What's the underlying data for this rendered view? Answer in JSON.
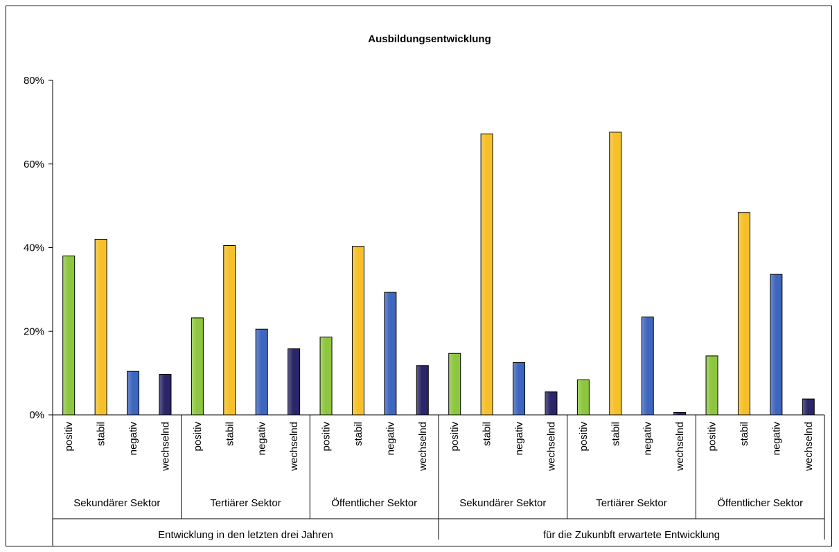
{
  "chart_data": {
    "type": "bar",
    "title": "Ausbildungsentwicklung",
    "ylim": [
      0,
      0.8
    ],
    "yticks": [
      "0%",
      "20%",
      "40%",
      "60%",
      "80%"
    ],
    "ytick_values": [
      0,
      0.2,
      0.4,
      0.6,
      0.8
    ],
    "grid": false,
    "legend": "none",
    "colors": {
      "positiv": "#8dc63f",
      "stabil": "#f5c02a",
      "negativ": "#3f66bf",
      "wechselnd": "#2a2668"
    },
    "groups": [
      {
        "label": "Entwicklung in den letzten drei Jahren",
        "sectors": [
          {
            "label": "Sekundärer Sektor",
            "bars": [
              {
                "label": "positiv",
                "value": 0.38
              },
              {
                "label": "stabil",
                "value": 0.42
              },
              {
                "label": "negativ",
                "value": 0.104
              },
              {
                "label": "wechselnd",
                "value": 0.097
              }
            ]
          },
          {
            "label": "Tertiärer Sektor",
            "bars": [
              {
                "label": "positiv",
                "value": 0.232
              },
              {
                "label": "stabil",
                "value": 0.405
              },
              {
                "label": "negativ",
                "value": 0.205
              },
              {
                "label": "wechselnd",
                "value": 0.158
              }
            ]
          },
          {
            "label": "Öffentlicher Sektor",
            "bars": [
              {
                "label": "positiv",
                "value": 0.186
              },
              {
                "label": "stabil",
                "value": 0.403
              },
              {
                "label": "negativ",
                "value": 0.293
              },
              {
                "label": "wechselnd",
                "value": 0.118
              }
            ]
          }
        ]
      },
      {
        "label": "für die Zukunbft erwartete Entwicklung",
        "sectors": [
          {
            "label": "Sekundärer Sektor",
            "bars": [
              {
                "label": "positiv",
                "value": 0.147
              },
              {
                "label": "stabil",
                "value": 0.672
              },
              {
                "label": "negativ",
                "value": 0.125
              },
              {
                "label": "wechselnd",
                "value": 0.055
              }
            ]
          },
          {
            "label": "Tertiärer Sektor",
            "bars": [
              {
                "label": "positiv",
                "value": 0.084
              },
              {
                "label": "stabil",
                "value": 0.676
              },
              {
                "label": "negativ",
                "value": 0.234
              },
              {
                "label": "wechselnd",
                "value": 0.006
              }
            ]
          },
          {
            "label": "Öffentlicher Sektor",
            "bars": [
              {
                "label": "positiv",
                "value": 0.141
              },
              {
                "label": "stabil",
                "value": 0.484
              },
              {
                "label": "negativ",
                "value": 0.336
              },
              {
                "label": "wechselnd",
                "value": 0.038
              }
            ]
          }
        ]
      }
    ]
  }
}
